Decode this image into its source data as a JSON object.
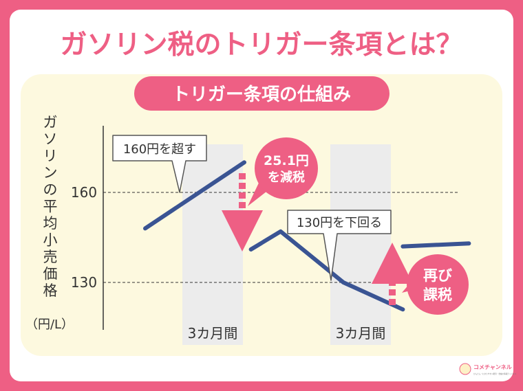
{
  "title": "ガソリン税のトリガー条項とは？",
  "subtitle": "トリガー条項の仕組み",
  "y_axis_label": [
    "ガ",
    "ソ",
    "リ",
    "ン",
    "の",
    "平",
    "均",
    "小",
    "売",
    "価",
    "格"
  ],
  "y_axis_unit": "（円/L）",
  "y_ticks": [
    {
      "label": "160",
      "value": 160
    },
    {
      "label": "130",
      "value": 130
    }
  ],
  "periods": [
    {
      "label": "3カ月間"
    },
    {
      "label": "3カ月間"
    }
  ],
  "callouts": {
    "exceed": "160円を超す",
    "below": "130円を下回る"
  },
  "badges": {
    "cut": [
      "25.1円",
      "を減税"
    ],
    "reimpose": [
      "再び",
      "課税"
    ]
  },
  "line_segments": [
    {
      "name": "rise",
      "points": [
        [
          1,
          148
        ],
        [
          4,
          170
        ]
      ]
    },
    {
      "name": "after-cut",
      "points": [
        [
          4.2,
          141
        ],
        [
          5.1,
          147
        ],
        [
          7,
          130
        ],
        [
          8.8,
          121
        ]
      ]
    },
    {
      "name": "after-reimpose",
      "points": [
        [
          8.8,
          142
        ],
        [
          10.8,
          143
        ]
      ]
    }
  ],
  "colors": {
    "brand_pink": "#ee5f84",
    "line": "#3a5493",
    "period_band": "#ececec",
    "panel": "#fdf9df",
    "text": "#333333"
  },
  "brand": {
    "name": "コメチャンネル",
    "tagline": "かんたん・わかりやすい経済・金融の情報チャンネル"
  }
}
